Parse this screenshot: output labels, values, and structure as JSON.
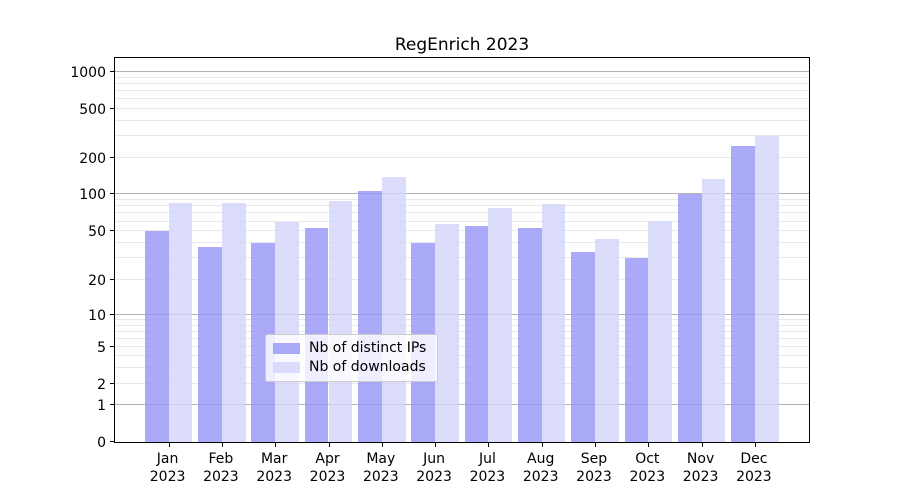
{
  "figure": {
    "title": "RegEnrich 2023"
  },
  "chart_data": {
    "type": "bar",
    "title": "RegEnrich 2023",
    "x_categories": [
      {
        "month": "Jan",
        "year": "2023"
      },
      {
        "month": "Feb",
        "year": "2023"
      },
      {
        "month": "Mar",
        "year": "2023"
      },
      {
        "month": "Apr",
        "year": "2023"
      },
      {
        "month": "May",
        "year": "2023"
      },
      {
        "month": "Jun",
        "year": "2023"
      },
      {
        "month": "Jul",
        "year": "2023"
      },
      {
        "month": "Aug",
        "year": "2023"
      },
      {
        "month": "Sep",
        "year": "2023"
      },
      {
        "month": "Oct",
        "year": "2023"
      },
      {
        "month": "Nov",
        "year": "2023"
      },
      {
        "month": "Dec",
        "year": "2023"
      }
    ],
    "series": [
      {
        "name": "Nb of distinct IPs",
        "color": "rgba(149,149,248,0.8)",
        "values": [
          50,
          37,
          40,
          53,
          107,
          40,
          55,
          53,
          34,
          30,
          100,
          253
        ]
      },
      {
        "name": "Nb of downloads",
        "color": "rgba(211,211,250,0.8)",
        "values": [
          85,
          85,
          60,
          89,
          140,
          57,
          77,
          84,
          43,
          61,
          135,
          300
        ]
      }
    ],
    "y_axis": {
      "scale": "symlog",
      "ticks": [
        0,
        1,
        2,
        5,
        10,
        20,
        50,
        100,
        200,
        500,
        1000
      ],
      "range": [
        0,
        1150
      ]
    },
    "grid": {
      "major_lines": [
        1,
        10,
        100,
        1000
      ],
      "minor_subs": [
        2,
        3,
        4,
        5,
        6,
        7,
        8,
        9
      ],
      "minor_decades": [
        1,
        10,
        100
      ]
    },
    "legend": {
      "position": "lower center",
      "entries": [
        "Nb of distinct IPs",
        "Nb of downloads"
      ]
    }
  },
  "colors": {
    "bar_distinct_ips": "rgba(149,149,248,0.8)",
    "bar_downloads": "rgba(211,211,250,0.8)",
    "grid_major": "#b4b4b4",
    "grid_minor": "#e9e9e9",
    "spine": "#000000",
    "background": "#ffffff"
  }
}
